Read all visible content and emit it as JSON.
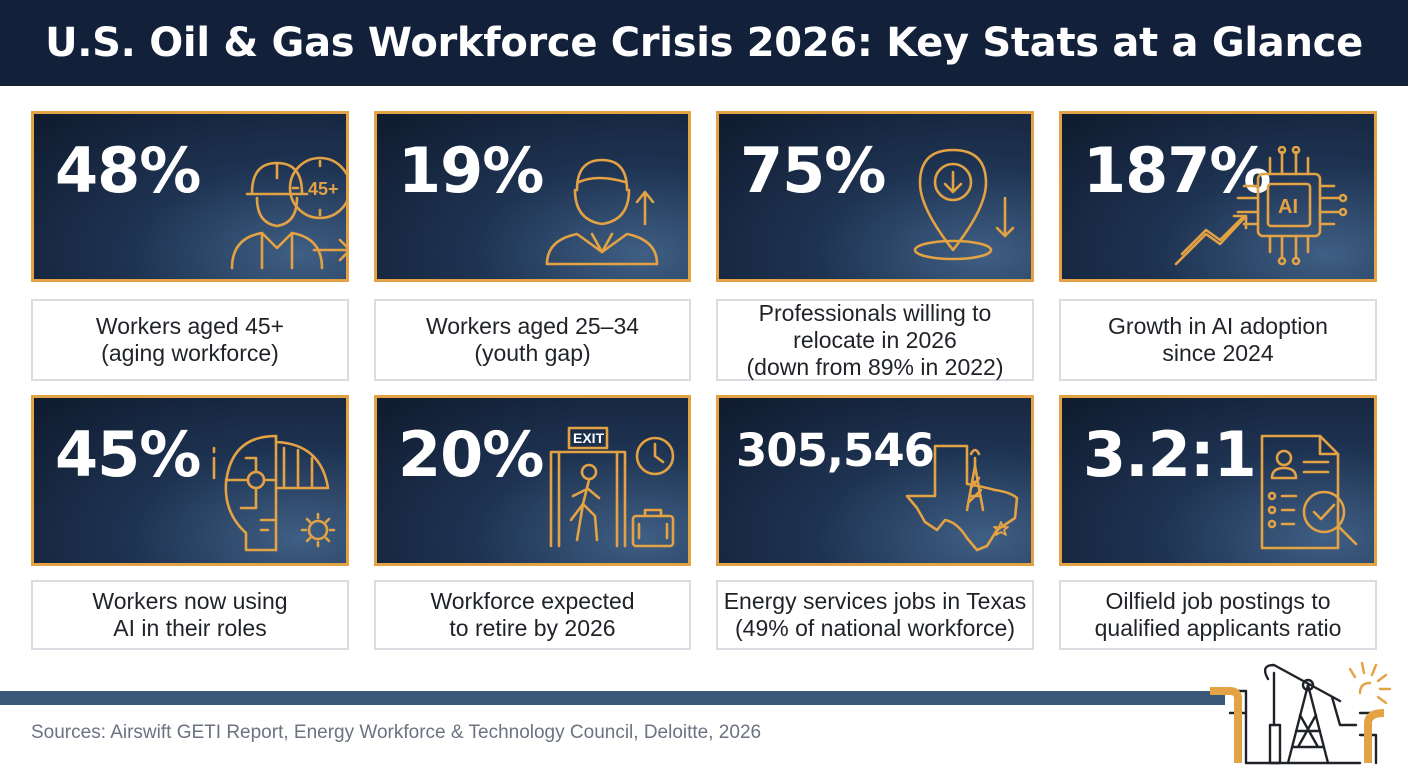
{
  "header": {
    "title": "U.S. Oil & Gas Workforce Crisis 2026: Key Stats at a Glance"
  },
  "stats": [
    {
      "value": "48%",
      "icon": "aging-worker-icon",
      "label": "Workers aged 45+\n(aging workforce)"
    },
    {
      "value": "19%",
      "icon": "young-worker-up-arrow-icon",
      "label": "Workers aged 25–34\n(youth gap)"
    },
    {
      "value": "75%",
      "icon": "location-pin-down-icon",
      "label": "Professionals willing to\nrelocate in 2026\n(down from 89% in 2022)"
    },
    {
      "value": "187%",
      "icon": "ai-chip-growth-icon",
      "label": "Growth in AI adoption\nsince 2024"
    },
    {
      "value": "45%",
      "icon": "ai-head-helmet-icon",
      "label": "Workers now using\nAI in their roles"
    },
    {
      "value": "20%",
      "icon": "exit-door-retire-icon",
      "label": "Workforce expected\nto retire by 2026"
    },
    {
      "value": "305,546",
      "icon": "texas-oil-derrick-icon",
      "label": "Energy services jobs in Texas\n(49% of national workforce)"
    },
    {
      "value": "3.2:1",
      "icon": "resume-magnifier-icon",
      "label": "Oilfield job postings to\nqualified applicants ratio"
    }
  ],
  "footer": {
    "sources": "Sources: Airswift GETI Report, Energy Workforce & Technology Council, Deloitte, 2026",
    "icon": "pumpjack-icon"
  },
  "icon_labels": {
    "age": "45+",
    "ai": "AI",
    "exit": "EXIT"
  },
  "colors": {
    "header_bg": "#13203a",
    "card_bg": "#1e3352",
    "accent": "#e3a243",
    "rule": "#3c5878"
  }
}
